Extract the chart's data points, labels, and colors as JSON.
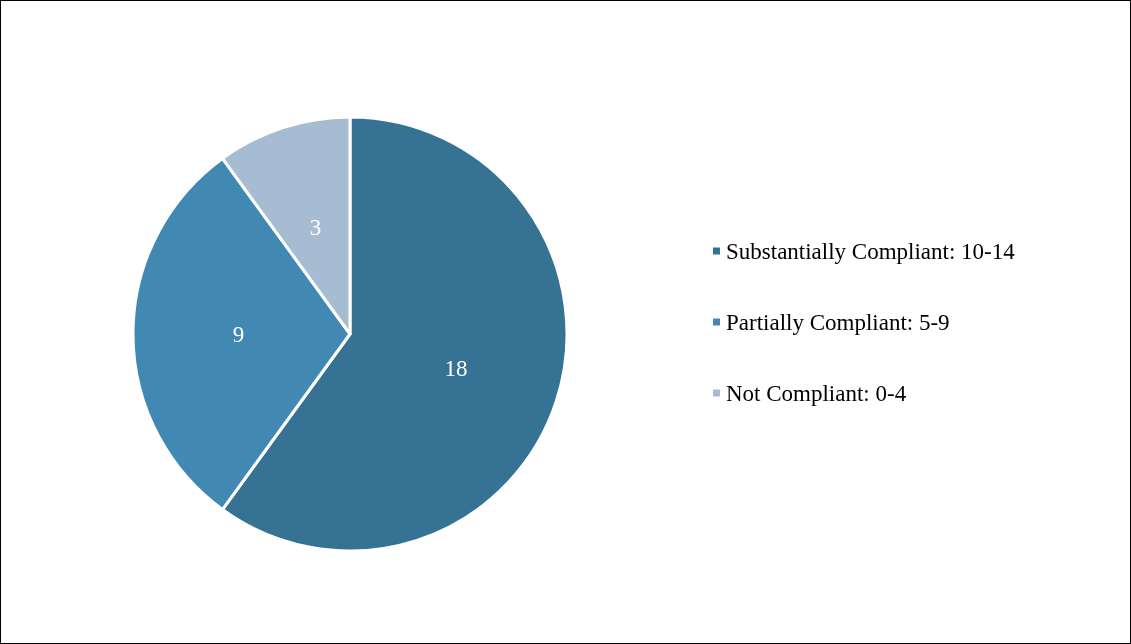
{
  "chart_data": {
    "type": "pie",
    "categories": [
      "Substantially Compliant: 10-14",
      "Partially Compliant: 5-9",
      "Not Compliant: 0-4"
    ],
    "values": [
      18,
      9,
      3
    ],
    "colors": [
      "#357294",
      "#4189b3",
      "#a6bcd3"
    ],
    "data_labels": true,
    "legend": "right"
  }
}
